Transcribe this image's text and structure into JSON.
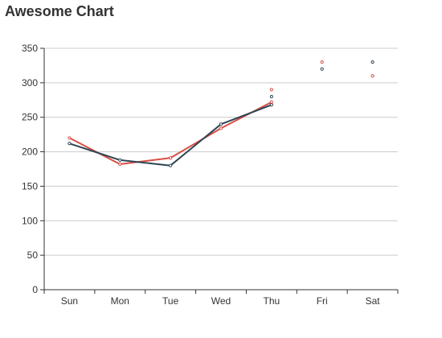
{
  "chart_data": {
    "type": "line",
    "title": "Awesome Chart",
    "xlabel": "",
    "ylabel": "",
    "categories": [
      "Sun",
      "Mon",
      "Tue",
      "Wed",
      "Thu",
      "Fri",
      "Sat"
    ],
    "ylim": [
      0,
      350
    ],
    "yticks": [
      "0",
      "50",
      "100",
      "150",
      "200",
      "250",
      "300",
      "350"
    ],
    "grid": true,
    "legend": "none",
    "series": [
      {
        "color": "#d94e46",
        "values": [
          220,
          182,
          191,
          234,
          272,
          null,
          null
        ],
        "points": [
          {
            "category": "Thu",
            "value": 290
          },
          {
            "category": "Fri",
            "value": 330
          },
          {
            "category": "Sat",
            "value": 310
          }
        ]
      },
      {
        "color": "#2f4554",
        "values": [
          212,
          188,
          180,
          240,
          268,
          null,
          null
        ],
        "points": [
          {
            "category": "Thu",
            "value": 280
          },
          {
            "category": "Fri",
            "value": 320
          },
          {
            "category": "Sat",
            "value": 330
          }
        ]
      }
    ],
    "axis_color": "#333333",
    "grid_color": "#cccccc"
  }
}
